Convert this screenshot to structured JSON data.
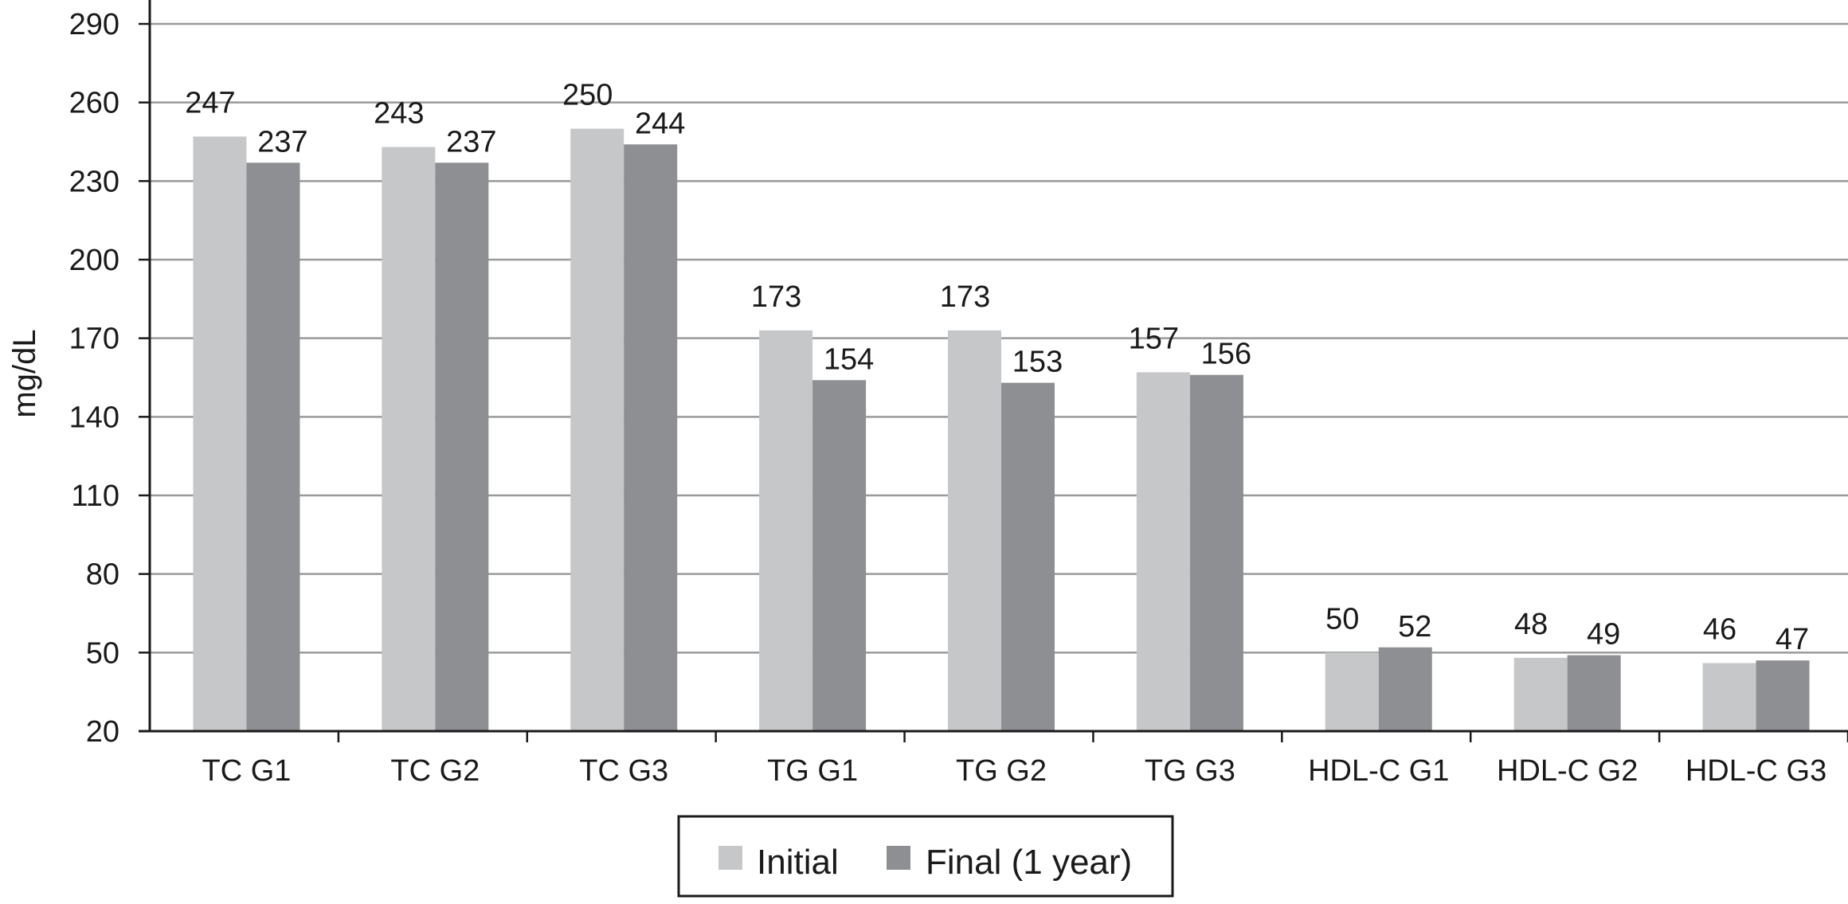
{
  "chart_data": {
    "type": "bar",
    "title": "",
    "xlabel": "",
    "ylabel": "mg/dL",
    "ylim": [
      20,
      290
    ],
    "yticks": [
      20,
      50,
      80,
      110,
      140,
      170,
      200,
      230,
      260,
      290
    ],
    "grid": true,
    "legend_position": "bottom",
    "categories": [
      "TC G1",
      "TC G2",
      "TC G3",
      "TG G1",
      "TG G2",
      "TG G3",
      "HDL-C G1",
      "HDL-C G2",
      "HDL-C G3"
    ],
    "series": [
      {
        "name": "Initial",
        "color": "#c6c7c9",
        "values": [
          247,
          243,
          250,
          173,
          173,
          157,
          50,
          48,
          46
        ]
      },
      {
        "name": "Final (1 year)",
        "color": "#8e8f92",
        "values": [
          237,
          237,
          244,
          154,
          153,
          156,
          52,
          49,
          47
        ]
      }
    ]
  }
}
